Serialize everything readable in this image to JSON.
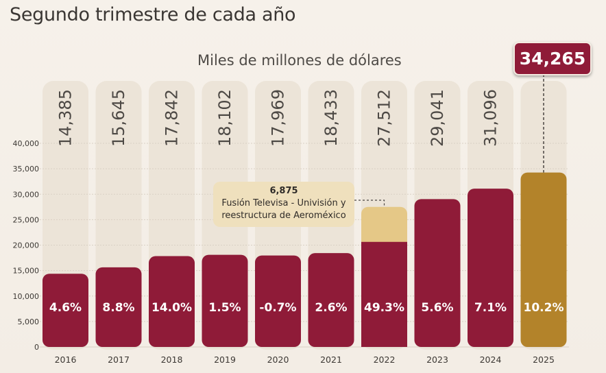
{
  "header": {
    "title": "Segundo trimestre de cada año",
    "subtitle": "Miles de millones de dólares"
  },
  "highlight": {
    "value_label": "34,265"
  },
  "annotation": {
    "value_label": "6,875",
    "line1": "Fusión Televisa - Univisión y",
    "line2": "reestructura de Aeroméxico"
  },
  "colors": {
    "bar": "#8f1b38",
    "bar_highlight": "#b3832a",
    "bar_extra": "#e5c887",
    "pill": "#ece4d8",
    "background": "#f4efe8"
  },
  "chart_data": {
    "type": "bar",
    "title": "Segundo trimestre de cada año",
    "ylabel": "Miles de millones de dólares",
    "categories": [
      "2016",
      "2017",
      "2018",
      "2019",
      "2020",
      "2021",
      "2022",
      "2023",
      "2024",
      "2025"
    ],
    "values": [
      14385,
      15645,
      17842,
      18102,
      17969,
      18433,
      27512,
      29041,
      31096,
      34265
    ],
    "value_labels": [
      "14,385",
      "15,645",
      "17,842",
      "18,102",
      "17,969",
      "18,433",
      "27,512",
      "29,041",
      "31,096",
      ""
    ],
    "growth_labels": [
      "4.6%",
      "8.8%",
      "14.0%",
      "1.5%",
      "-0.7%",
      "2.6%",
      "49.3%",
      "5.6%",
      "7.1%",
      "10.2%"
    ],
    "extra_segment": {
      "category": "2022",
      "value": 6875
    },
    "highlight_category": "2025",
    "ylim": [
      0,
      40000
    ],
    "yticks": [
      0,
      5000,
      10000,
      15000,
      20000,
      25000,
      30000,
      35000,
      40000
    ],
    "ytick_labels": [
      "0",
      "5,000",
      "10,000",
      "15,000",
      "20,000",
      "25,000",
      "30,000",
      "35,000",
      "40,000"
    ],
    "grid": true
  }
}
